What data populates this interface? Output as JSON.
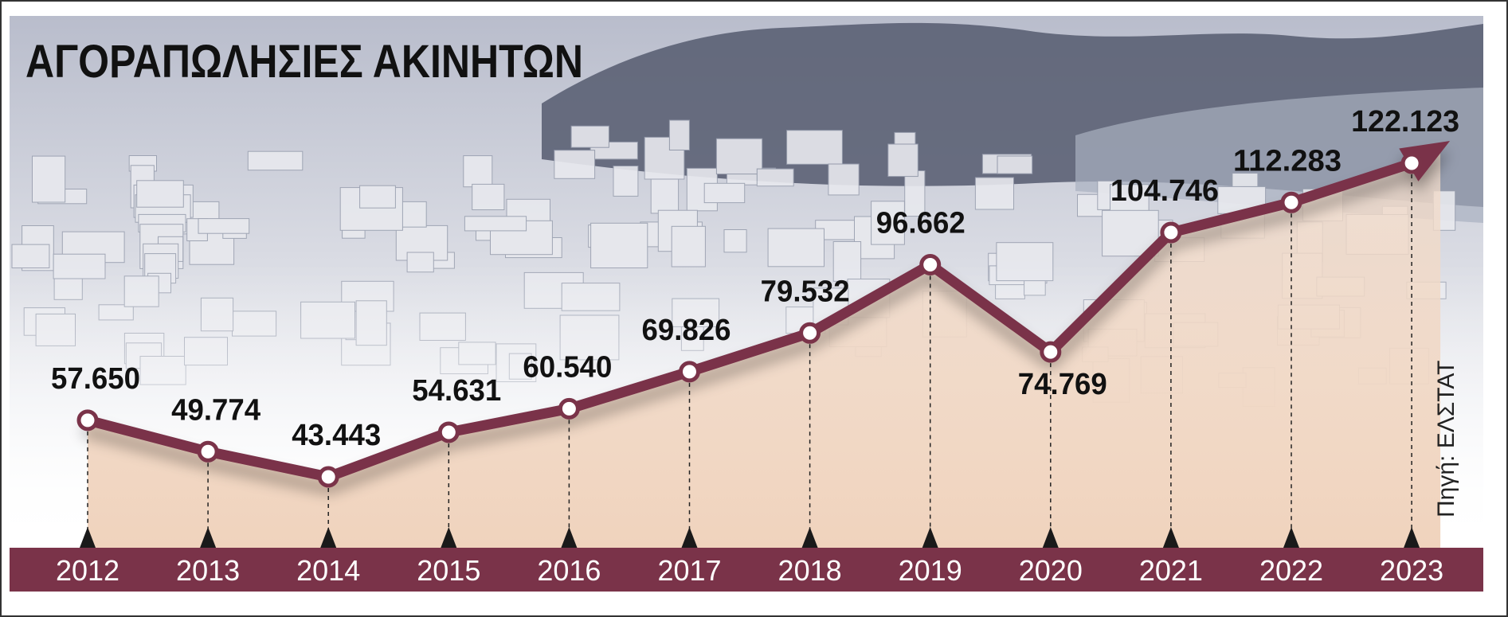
{
  "chart_data": {
    "type": "line",
    "title": "ΑΓΟΡΑΠΩΛΗΣΙΕΣ ΑΚΙΝΗΤΩΝ",
    "source": "Πηγή: ΕΛΣΤΑΤ",
    "categories": [
      "2012",
      "2013",
      "2014",
      "2015",
      "2016",
      "2017",
      "2018",
      "2019",
      "2020",
      "2021",
      "2022",
      "2023"
    ],
    "series": [
      {
        "values": [
          57650,
          49774,
          43443,
          54631,
          60540,
          69826,
          79532,
          96662,
          74769,
          104746,
          112283,
          122123
        ],
        "labels": [
          "57.650",
          "49.774",
          "43.443",
          "54.631",
          "60.540",
          "69.826",
          "79.532",
          "96.662",
          "74.769",
          "104.746",
          "112.283",
          "122.123"
        ]
      }
    ],
    "ylim": [
      0,
      130000
    ],
    "grid": false,
    "legend": "none"
  },
  "colors": {
    "line": "#7a3349",
    "band": "#7a3349",
    "area": "#f0d6c2",
    "marker_fill": "#ffffff",
    "text": "#111111",
    "band_text": "#ffffff",
    "sky": "#c5c9d6",
    "city": "#dfe1e8",
    "hill": "#4d5366"
  }
}
